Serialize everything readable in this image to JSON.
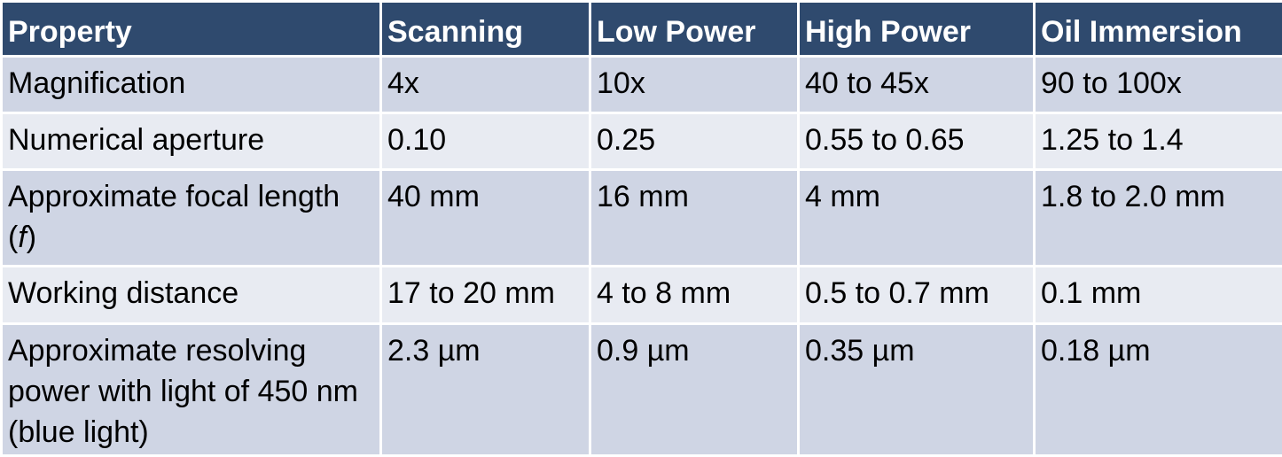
{
  "table": {
    "headers": [
      "Property",
      "Scanning",
      "Low Power",
      "High Power",
      "Oil Immersion"
    ],
    "rows": [
      [
        "Magnification",
        "4x",
        "10x",
        "40 to 45x",
        "90 to 100x"
      ],
      [
        "Numerical aperture",
        "0.10",
        "0.25",
        "0.55 to 0.65",
        "1.25 to 1.4"
      ],
      [
        "Approximate focal length (",
        "40 mm",
        "16 mm",
        "4 mm",
        "1.8 to 2.0 mm"
      ],
      [
        "Working distance",
        "17 to 20 mm",
        "4 to 8 mm",
        "0.5 to 0.7 mm",
        "0.1 mm"
      ],
      [
        "Approximate resolving power with light of 450 nm (blue light)",
        "2.3 µm",
        "0.9 µm",
        "0.35 µm",
        "0.18 µm"
      ]
    ],
    "focal_symbol": "f",
    "focal_close": ")"
  },
  "colors": {
    "header_bg": "#2f4a6e",
    "row_odd_bg": "#cfd5e4",
    "row_even_bg": "#e8ebf2"
  }
}
